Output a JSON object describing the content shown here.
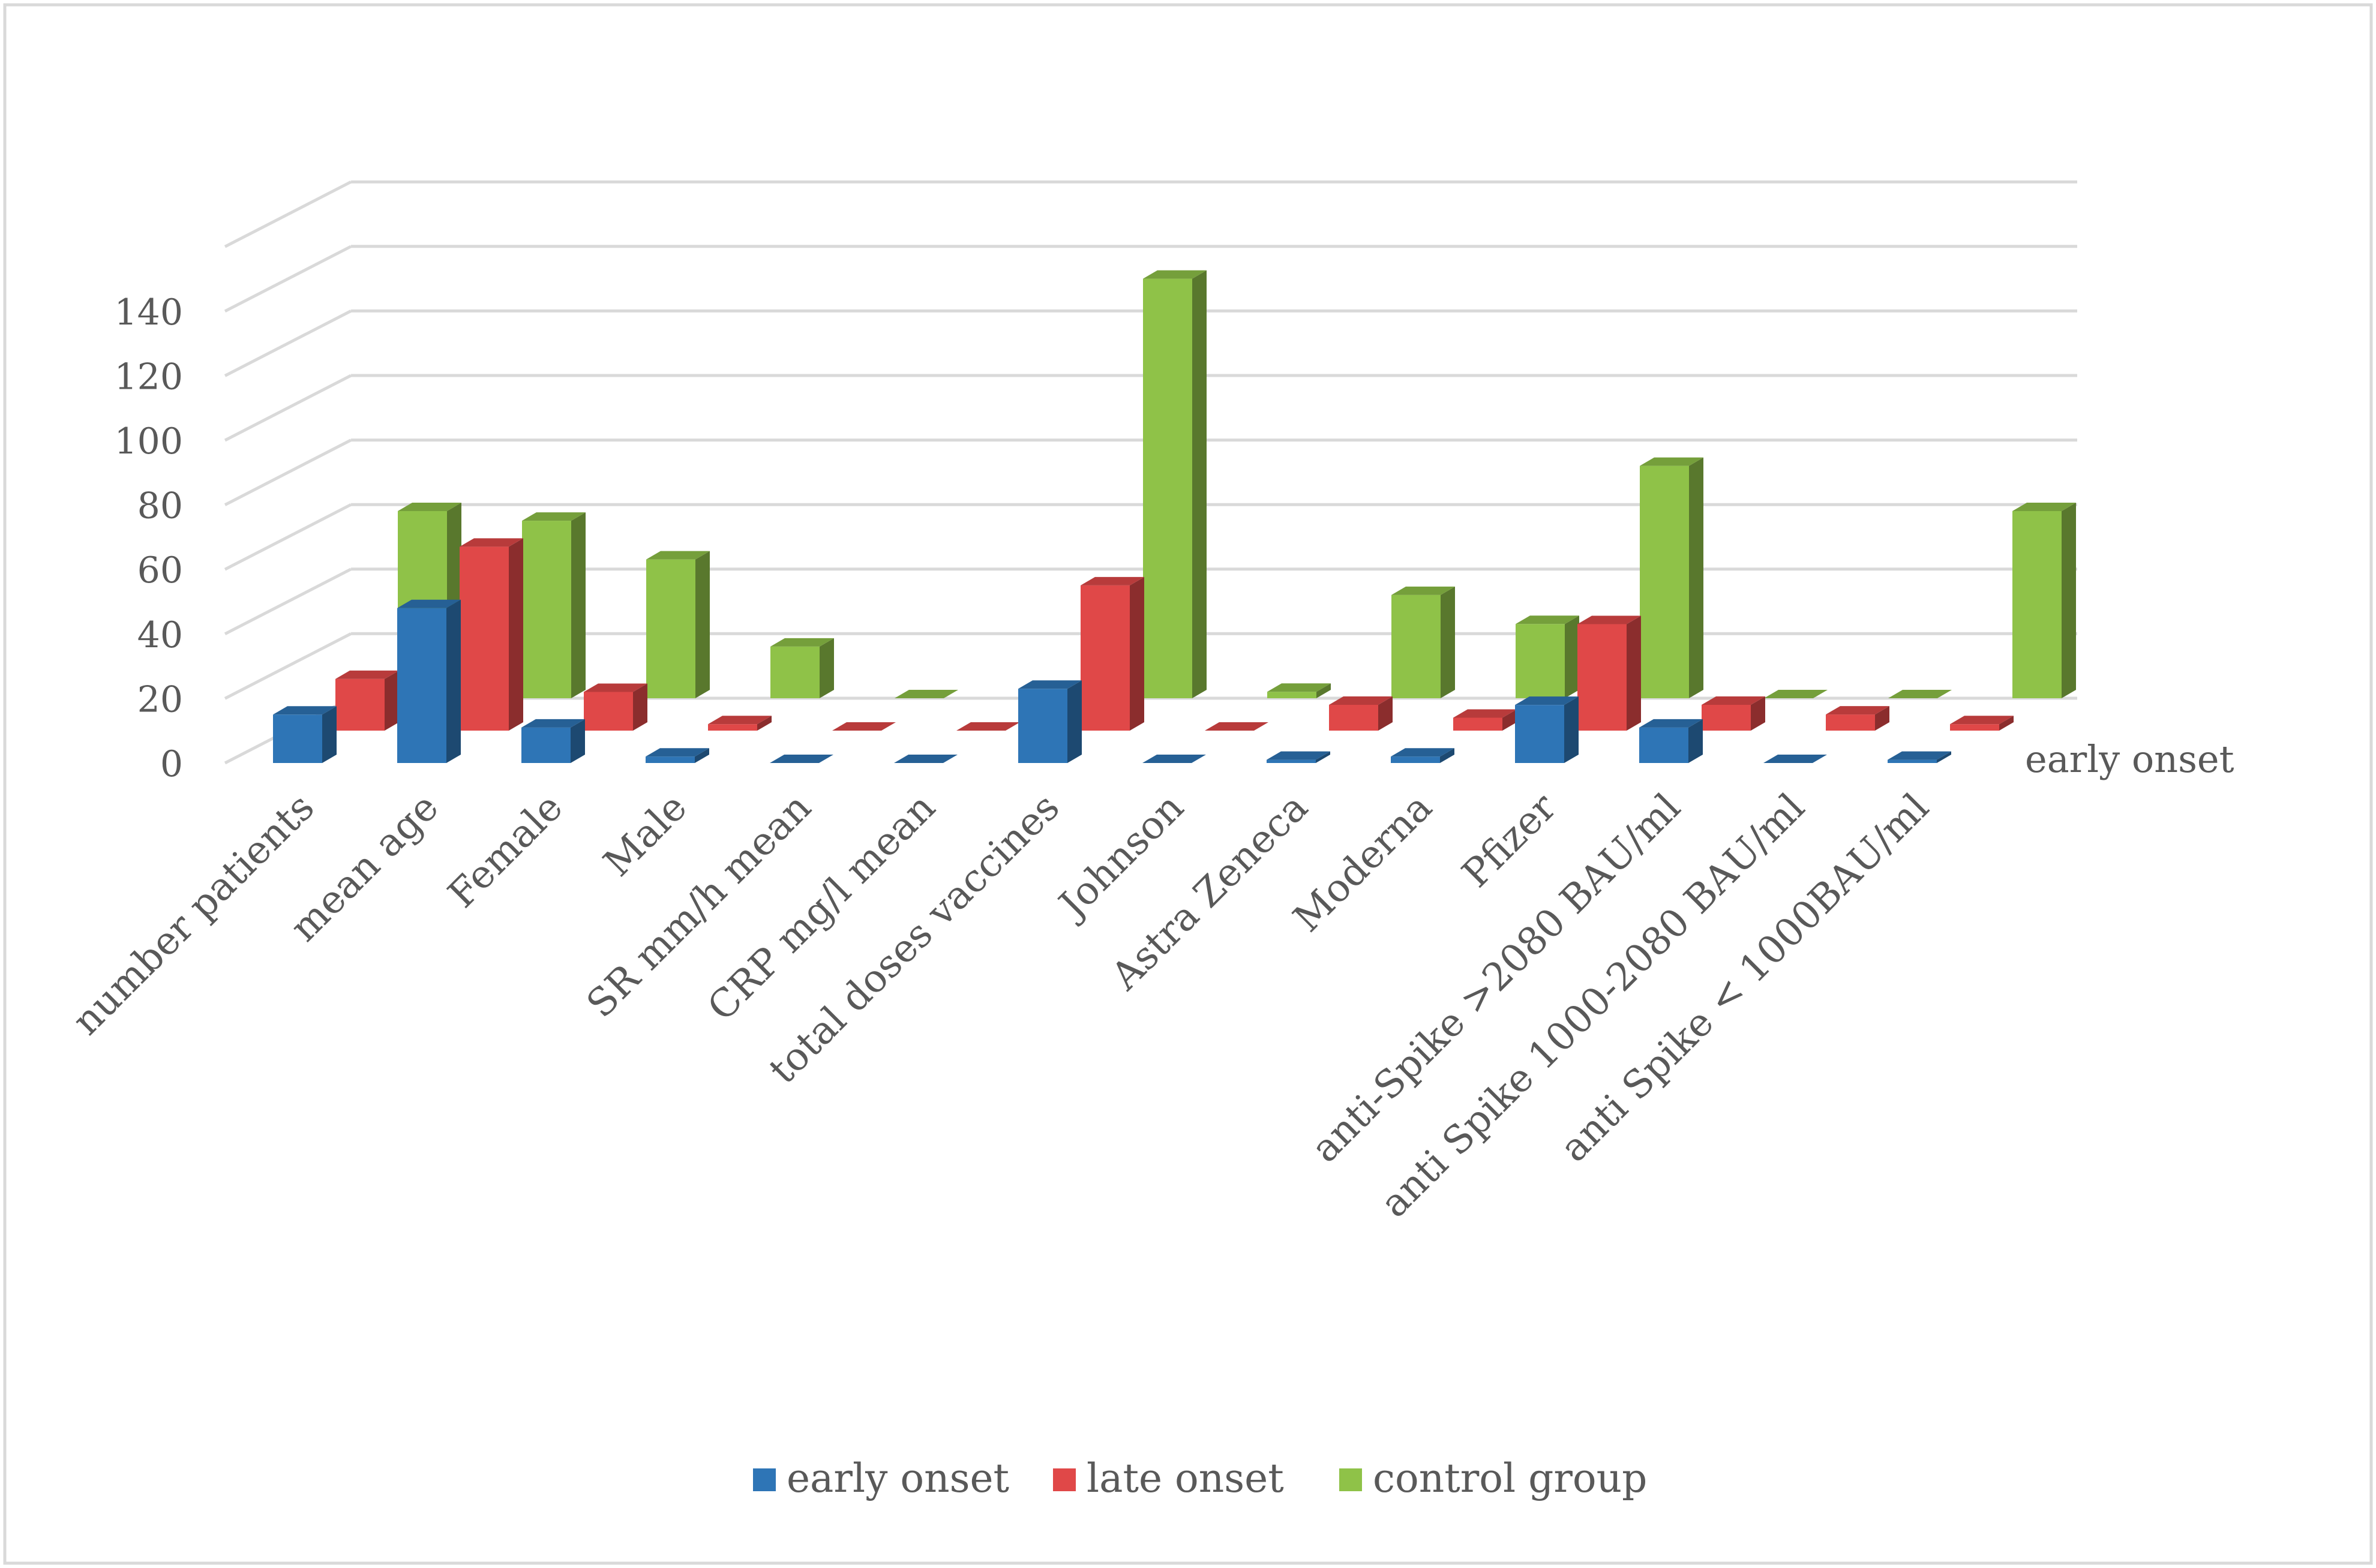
{
  "chart_data": {
    "type": "bar",
    "variant": "3d-column",
    "categories": [
      "number patients",
      "mean age",
      "Female",
      "Male",
      "SR mm/h mean",
      "CRP mg/l mean",
      "total doses vaccines",
      "Johnson",
      "Astra Zeneca",
      "Moderna",
      "Pfizer",
      "anti-Spike >2080 BAU/ml",
      "anti Spike  1000-2080 BAU/ml",
      "anti Spike  < 1000BAU/ml"
    ],
    "series": [
      {
        "name": "early onset",
        "color": "#2e75b6",
        "values": [
          15,
          48,
          11,
          2,
          0,
          0,
          23,
          0,
          1,
          2,
          18,
          11,
          0,
          1
        ]
      },
      {
        "name": "late onset",
        "color": "#e04848",
        "values": [
          16,
          57,
          12,
          2,
          0,
          0,
          45,
          0,
          8,
          4,
          33,
          8,
          5,
          2
        ]
      },
      {
        "name": "control group",
        "color": "#8fc248",
        "values": [
          58,
          55,
          43,
          16,
          0,
          0,
          130,
          2,
          32,
          23,
          72,
          0,
          0,
          58
        ]
      }
    ],
    "ylim": [
      0,
      140
    ],
    "yticks": [
      0,
      20,
      40,
      60,
      80,
      100,
      120,
      140
    ],
    "depth_axis_label": "early onset",
    "grid": true,
    "legend_position": "bottom"
  }
}
